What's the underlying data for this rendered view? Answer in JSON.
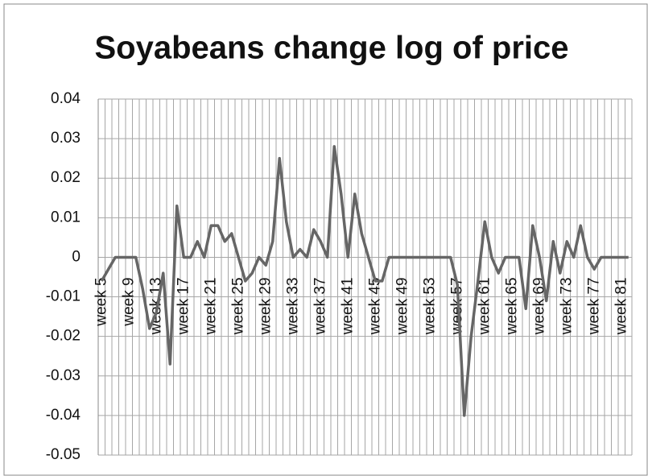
{
  "chart_data": {
    "type": "line",
    "title": "Soyabeans change log of price",
    "categories": [
      "week 5",
      null,
      null,
      null,
      "week 9",
      null,
      null,
      null,
      "week 13",
      null,
      null,
      null,
      "week 17",
      null,
      null,
      null,
      "week 21",
      null,
      null,
      null,
      "week 25",
      null,
      null,
      null,
      "week 29",
      null,
      null,
      null,
      "week 33",
      null,
      null,
      null,
      "week 37",
      null,
      null,
      null,
      "week 41",
      null,
      null,
      null,
      "week 45",
      null,
      null,
      null,
      "week 49",
      null,
      null,
      null,
      "week 53",
      null,
      null,
      null,
      "week 57",
      null,
      null,
      null,
      "week 61",
      null,
      null,
      null,
      "week 65",
      null,
      null,
      null,
      "week 69",
      null,
      null,
      null,
      "week 73",
      null,
      null,
      null,
      "week 77",
      null,
      null,
      null,
      "week 81",
      null
    ],
    "series": [
      {
        "name": "Soyabeans",
        "color": "#666666",
        "values": [
          -0.006,
          -0.003,
          0,
          0,
          0,
          0,
          -0.008,
          -0.018,
          -0.014,
          -0.004,
          -0.027,
          0.013,
          0,
          0,
          0.004,
          0,
          0.008,
          0.008,
          0.004,
          0.006,
          0,
          -0.006,
          -0.004,
          0,
          -0.002,
          0.004,
          0.025,
          0.009,
          0,
          0.002,
          0,
          0.007,
          0.004,
          0,
          0.028,
          0.016,
          0,
          0.016,
          0.006,
          0,
          -0.006,
          -0.006,
          0,
          0,
          0,
          0,
          0,
          0,
          0,
          0,
          0,
          0,
          -0.007,
          -0.04,
          -0.02,
          -0.006,
          0.009,
          0,
          -0.004,
          0,
          0,
          0,
          -0.013,
          0.008,
          0,
          -0.011,
          0.004,
          -0.004,
          0.004,
          0,
          0.008,
          0,
          -0.003,
          0,
          0,
          0,
          0,
          0
        ]
      }
    ],
    "ylim": [
      -0.05,
      0.04
    ],
    "yticks": [
      {
        "value": -0.05,
        "label": "-0.05"
      },
      {
        "value": -0.04,
        "label": "-0.04"
      },
      {
        "value": -0.03,
        "label": "-0.03"
      },
      {
        "value": -0.02,
        "label": "-0.02"
      },
      {
        "value": -0.01,
        "label": "-0.01"
      },
      0,
      {
        "value": 0.01,
        "label": "0.01"
      },
      {
        "value": 0.02,
        "label": "0.02"
      },
      {
        "value": 0.03,
        "label": "0.03"
      },
      {
        "value": 0.04,
        "label": "0.04"
      }
    ],
    "grid": true
  }
}
